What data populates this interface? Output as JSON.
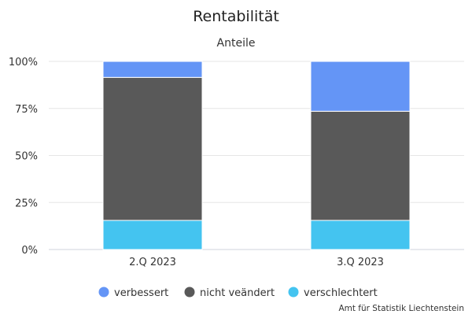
{
  "chart_data": {
    "type": "bar",
    "stacked": true,
    "title": "Rentabilität",
    "subtitle": "Anteile",
    "xlabel": "",
    "ylabel": "",
    "categories": [
      "2.Q 2023",
      "3.Q 2023"
    ],
    "series": [
      {
        "name": "verschlechtert",
        "color": "#44c4f0",
        "values": [
          15.5,
          15.5
        ]
      },
      {
        "name": "nicht veändert",
        "color": "#595959",
        "values": [
          76.0,
          58.0
        ]
      },
      {
        "name": "verbessert",
        "color": "#6495f6",
        "values": [
          8.5,
          26.5
        ]
      }
    ],
    "legend_order": [
      "verbessert",
      "nicht veändert",
      "verschlechtert"
    ],
    "ylim": [
      0,
      100
    ],
    "yticks": [
      "0%",
      "25%",
      "50%",
      "75%",
      "100%"
    ],
    "ytick_values": [
      0,
      25,
      50,
      75,
      100
    ],
    "grid": true,
    "legend_position": "bottom-center"
  },
  "credit": "Amt für Statistik Liechtenstein"
}
